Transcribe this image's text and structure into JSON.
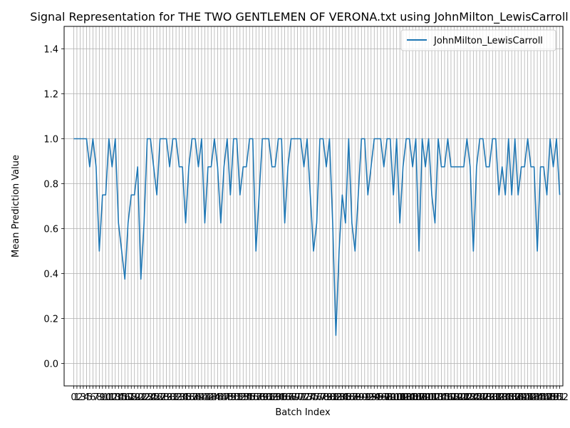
{
  "chart_data": {
    "type": "line",
    "title": "Signal Representation for THE TWO GENTLEMEN OF VERONA.txt using JohnMilton_LewisCarroll",
    "xlabel": "Batch Index",
    "ylabel": "Mean Prediction Value",
    "xlim": [
      -3,
      153
    ],
    "ylim": [
      -0.1,
      1.5
    ],
    "yticks": [
      0.0,
      0.2,
      0.4,
      0.6,
      0.8,
      1.0,
      1.2,
      1.4
    ],
    "ytick_labels": [
      "0.0",
      "0.2",
      "0.4",
      "0.6",
      "0.8",
      "1.0",
      "1.2",
      "1.4"
    ],
    "grid": true,
    "legend_position": "upper right",
    "color": "#1f77b4",
    "x_start": 0,
    "series": [
      {
        "name": "JohnMilton_LewisCarroll",
        "values": [
          1.0,
          1.0,
          1.0,
          1.0,
          1.0,
          0.875,
          1.0,
          0.875,
          0.5,
          0.75,
          0.75,
          1.0,
          0.875,
          1.0,
          0.625,
          0.5,
          0.375,
          0.625,
          0.75,
          0.75,
          0.875,
          0.375,
          0.625,
          1.0,
          1.0,
          0.875,
          0.75,
          1.0,
          1.0,
          1.0,
          0.875,
          1.0,
          1.0,
          0.875,
          0.875,
          0.625,
          0.875,
          1.0,
          1.0,
          0.875,
          1.0,
          0.625,
          0.875,
          0.875,
          1.0,
          0.875,
          0.625,
          0.875,
          1.0,
          0.75,
          1.0,
          1.0,
          0.75,
          0.875,
          0.875,
          1.0,
          1.0,
          0.5,
          0.75,
          1.0,
          1.0,
          1.0,
          0.875,
          0.875,
          1.0,
          1.0,
          0.625,
          0.875,
          1.0,
          1.0,
          1.0,
          1.0,
          0.875,
          1.0,
          0.75,
          0.5,
          0.625,
          1.0,
          1.0,
          0.875,
          1.0,
          0.625,
          0.125,
          0.5,
          0.75,
          0.625,
          1.0,
          0.625,
          0.5,
          0.75,
          1.0,
          1.0,
          0.75,
          0.875,
          1.0,
          1.0,
          1.0,
          0.875,
          1.0,
          1.0,
          0.75,
          1.0,
          0.625,
          0.875,
          1.0,
          1.0,
          0.875,
          1.0,
          0.5,
          1.0,
          0.875,
          1.0,
          0.75,
          0.625,
          1.0,
          0.875,
          0.875,
          1.0,
          0.875,
          0.875,
          0.875,
          0.875,
          0.875,
          1.0,
          0.875,
          0.5,
          0.875,
          1.0,
          1.0,
          0.875,
          0.875,
          1.0,
          1.0,
          0.75,
          0.875,
          0.75,
          1.0,
          0.75,
          1.0,
          0.75,
          0.875,
          0.875,
          1.0,
          0.875,
          0.875,
          0.5,
          0.875,
          0.875,
          0.75,
          1.0,
          0.875,
          1.0,
          0.75
        ]
      }
    ]
  }
}
